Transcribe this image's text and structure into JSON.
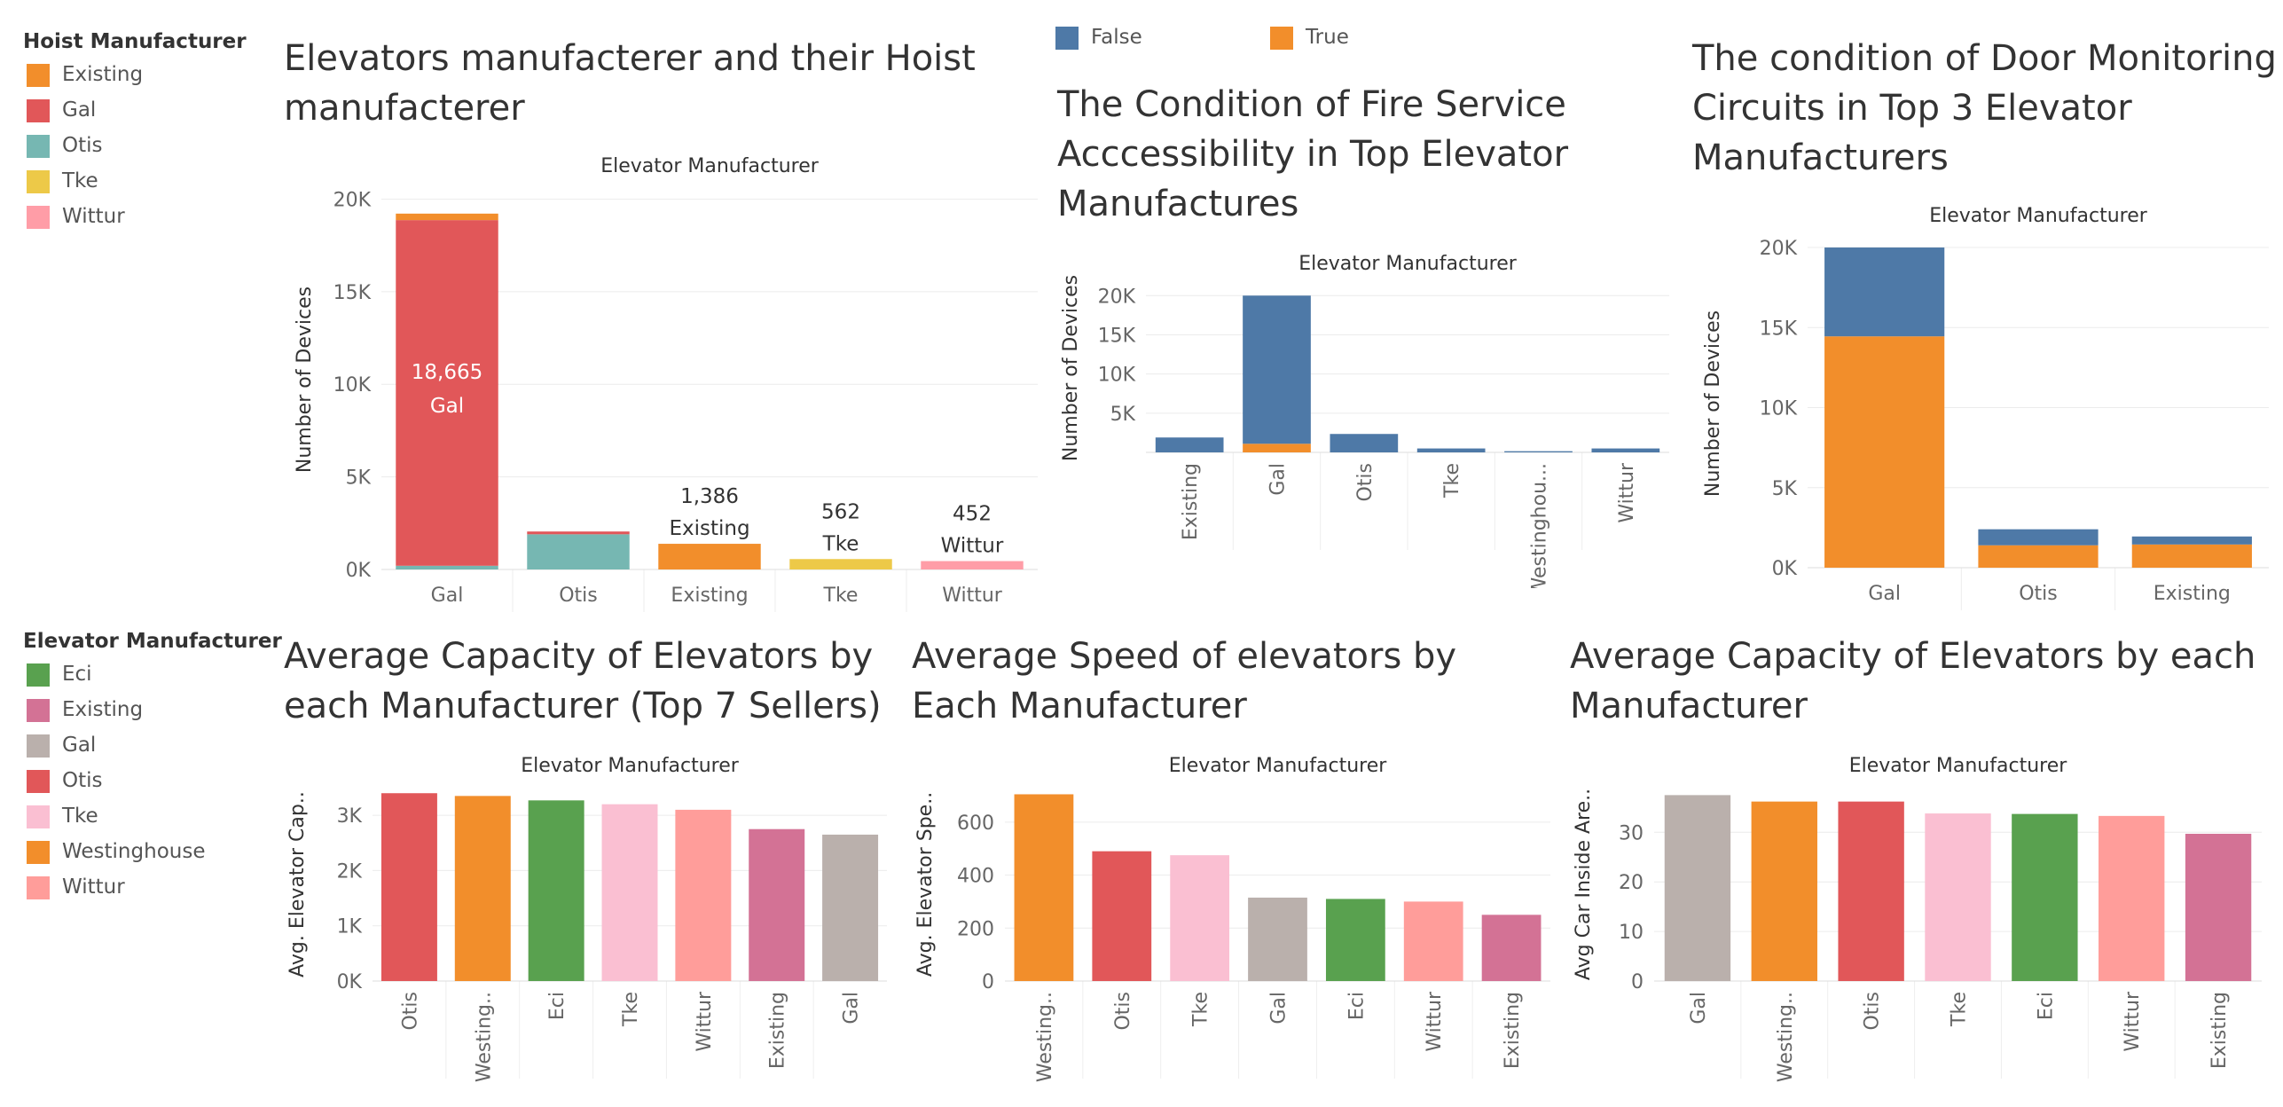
{
  "hoist_legend": {
    "title": "Hoist Manufacturer",
    "items": [
      {
        "label": "Existing",
        "color": "#f28e2b"
      },
      {
        "label": "Gal",
        "color": "#e15759"
      },
      {
        "label": "Otis",
        "color": "#76b7b2"
      },
      {
        "label": "Tke",
        "color": "#edc948"
      },
      {
        "label": "Wittur",
        "color": "#ff9da7"
      }
    ]
  },
  "bool_legend": {
    "items": [
      {
        "label": "False",
        "color": "#4e79a7"
      },
      {
        "label": "True",
        "color": "#f28e2b"
      }
    ]
  },
  "elev_legend": {
    "title": "Elevator Manufacturer",
    "items": [
      {
        "label": "Eci",
        "color": "#59a14f"
      },
      {
        "label": "Existing",
        "color": "#d37295"
      },
      {
        "label": "Gal",
        "color": "#bab0ac"
      },
      {
        "label": "Otis",
        "color": "#e15759"
      },
      {
        "label": "Tke",
        "color": "#fabfd2"
      },
      {
        "label": "Westinghouse",
        "color": "#f28e2b"
      },
      {
        "label": "Wittur",
        "color": "#ff9d9a"
      }
    ]
  },
  "titles": {
    "c1": "Elevators manufacterer and their Hoist manufacterer",
    "c2": "The Condition of Fire Service Acccessibility in Top Elevator Manufactures",
    "c3": "The condition of Door Monitoring Circuits in Top 3 Elevator Manufacturers",
    "c4": "Average Capacity of Elevators by each Manufacturer (Top 7 Sellers)",
    "c5": "Average Speed of elevators by Each Manufacturer",
    "c6": "Average Capacity of Elevators by each Manufacturer"
  },
  "chart_data": [
    {
      "id": "c1",
      "type": "bar",
      "stacked": true,
      "title": "Elevators manufacterer and their Hoist manufacterer",
      "header": "Elevator Manufacturer",
      "ylabel": "Number of Devices",
      "yticks": [
        "0K",
        "5K",
        "10K",
        "15K",
        "20K"
      ],
      "ylim": [
        0,
        20500
      ],
      "categories": [
        "Gal",
        "Otis",
        "Existing",
        "Tke",
        "Wittur"
      ],
      "series": [
        {
          "name": "Otis",
          "color": "#76b7b2",
          "values": [
            200,
            1900,
            0,
            0,
            0
          ]
        },
        {
          "name": "Gal",
          "color": "#e15759",
          "values": [
            18665,
            150,
            0,
            0,
            0
          ]
        },
        {
          "name": "Existing",
          "color": "#f28e2b",
          "values": [
            350,
            0,
            1386,
            0,
            0
          ]
        },
        {
          "name": "Tke",
          "color": "#edc948",
          "values": [
            0,
            0,
            0,
            562,
            0
          ]
        },
        {
          "name": "Wittur",
          "color": "#ff9da7",
          "values": [
            0,
            0,
            0,
            0,
            452
          ]
        }
      ],
      "labels": [
        {
          "category": "Gal",
          "series": "Gal",
          "value": "18,665",
          "name": "Gal",
          "inside": true
        },
        {
          "category": "Existing",
          "series": "Existing",
          "value": "1,386",
          "name": "Existing"
        },
        {
          "category": "Tke",
          "series": "Tke",
          "value": "562",
          "name": "Tke"
        },
        {
          "category": "Wittur",
          "series": "Wittur",
          "value": "452",
          "name": "Wittur"
        }
      ]
    },
    {
      "id": "c2",
      "type": "bar",
      "stacked": true,
      "title": "The Condition of Fire Service Acccessibility in Top Elevator Manufactures",
      "header": "Elevator Manufacturer",
      "ylabel": "Number of Devices",
      "yticks": [
        "5K",
        "10K",
        "15K",
        "20K"
      ],
      "ylim": [
        0,
        21500
      ],
      "categories": [
        "Existing",
        "Gal",
        "Otis",
        "Tke",
        "Westinghou...",
        "Wittur"
      ],
      "series": [
        {
          "name": "True",
          "color": "#f28e2b",
          "values": [
            0,
            1100,
            0,
            0,
            0,
            0
          ]
        },
        {
          "name": "False",
          "color": "#4e79a7",
          "values": [
            1900,
            18900,
            2350,
            500,
            150,
            500
          ]
        }
      ]
    },
    {
      "id": "c3",
      "type": "bar",
      "stacked": true,
      "title": "The condition of Door Monitoring Circuits in Top 3 Elevator Manufacturers",
      "header": "Elevator Manufacturer",
      "ylabel": "Number of Devices",
      "yticks": [
        "0K",
        "5K",
        "10K",
        "15K",
        "20K"
      ],
      "ylim": [
        0,
        20500
      ],
      "categories": [
        "Gal",
        "Otis",
        "Existing"
      ],
      "series": [
        {
          "name": "True",
          "color": "#f28e2b",
          "values": [
            14450,
            1400,
            1450
          ]
        },
        {
          "name": "False",
          "color": "#4e79a7",
          "values": [
            5550,
            1000,
            500
          ]
        }
      ]
    },
    {
      "id": "c4",
      "type": "bar",
      "title": "Average Capacity of Elevators by each Manufacturer (Top 7 Sellers)",
      "header": "Elevator Manufacturer",
      "ylabel": "Avg. Elevator Cap..",
      "yticks": [
        "0K",
        "1K",
        "2K",
        "3K"
      ],
      "ylim": [
        0,
        3500
      ],
      "categories": [
        "Otis",
        "Westing..",
        "Eci",
        "Tke",
        "Wittur",
        "Existing",
        "Gal"
      ],
      "colors": [
        "#e15759",
        "#f28e2b",
        "#59a14f",
        "#fabfd2",
        "#ff9d9a",
        "#d37295",
        "#bab0ac"
      ],
      "values": [
        3400,
        3350,
        3270,
        3200,
        3100,
        2750,
        2650
      ]
    },
    {
      "id": "c5",
      "type": "bar",
      "title": "Average Speed of elevators by Each Manufacturer",
      "header": "Elevator Manufacturer",
      "ylabel": "Avg. Elevator Spe..",
      "yticks": [
        "0",
        "200",
        "400",
        "600"
      ],
      "ylim": [
        0,
        730
      ],
      "categories": [
        "Westing..",
        "Otis",
        "Tke",
        "Gal",
        "Eci",
        "Wittur",
        "Existing"
      ],
      "colors": [
        "#f28e2b",
        "#e15759",
        "#fabfd2",
        "#bab0ac",
        "#59a14f",
        "#ff9d9a",
        "#d37295"
      ],
      "values": [
        705,
        490,
        475,
        315,
        310,
        300,
        250
      ]
    },
    {
      "id": "c6",
      "type": "bar",
      "title": "Average Capacity of Elevators by each Manufacturer",
      "header": "Elevator Manufacturer",
      "ylabel": "Avg Car Inside Are..",
      "yticks": [
        "0",
        "10",
        "20",
        "30"
      ],
      "ylim": [
        0,
        39
      ],
      "categories": [
        "Gal",
        "Westing..",
        "Otis",
        "Tke",
        "Eci",
        "Wittur",
        "Existing"
      ],
      "colors": [
        "#bab0ac",
        "#f28e2b",
        "#e15759",
        "#fabfd2",
        "#59a14f",
        "#ff9d9a",
        "#d37295"
      ],
      "values": [
        37.5,
        36.2,
        36.2,
        33.8,
        33.7,
        33.3,
        29.7
      ]
    }
  ]
}
